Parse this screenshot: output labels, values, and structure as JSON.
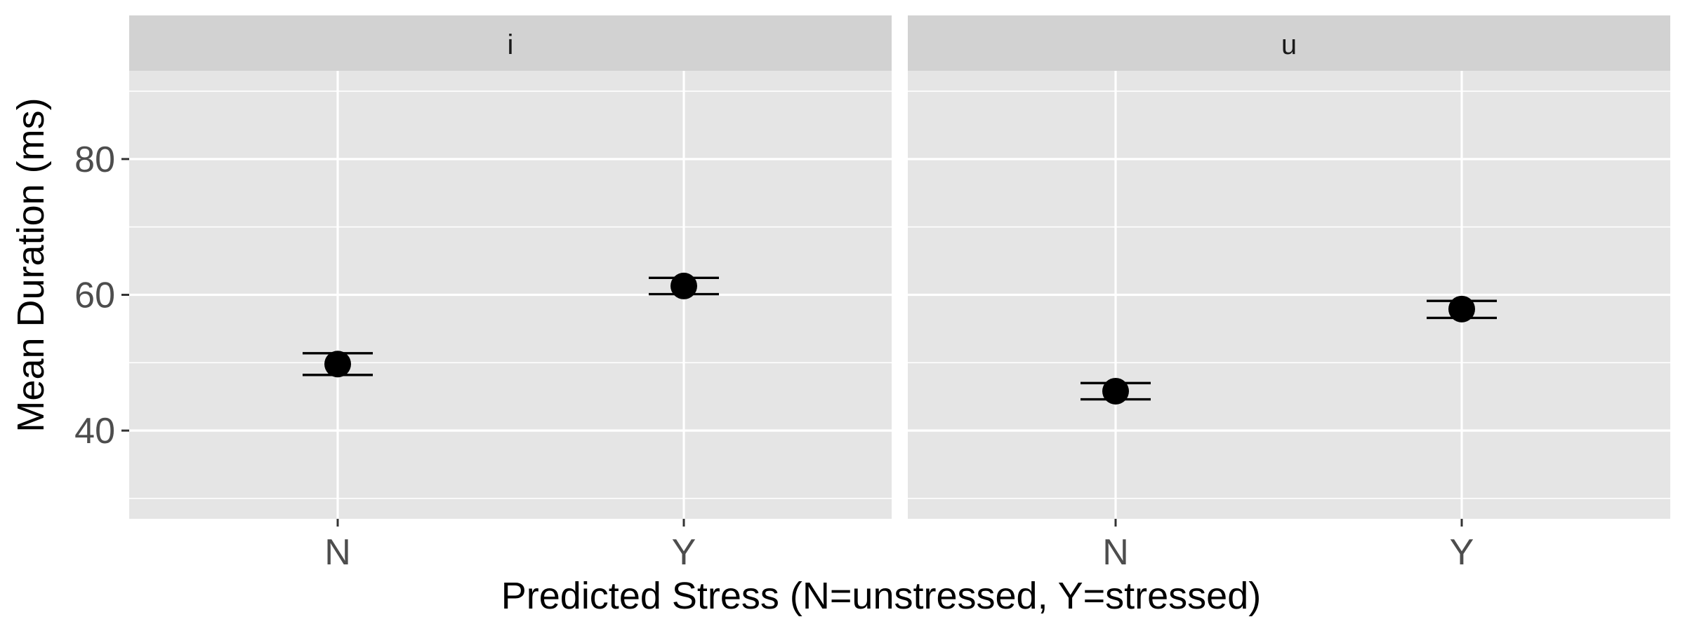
{
  "chart_data": {
    "type": "scatter",
    "facet_variable_values": [
      "i",
      "u"
    ],
    "categories": [
      "N",
      "Y"
    ],
    "xlabel": "Predicted Stress (N=unstressed, Y=stressed)",
    "ylabel": "Mean Duration (ms)",
    "ylim": [
      27,
      93
    ],
    "yticks": [
      40,
      60,
      80
    ],
    "y_tick_labels": [
      "40",
      "60",
      "80"
    ],
    "grid": true,
    "panels": [
      {
        "facet": "i",
        "points": [
          {
            "x": "N",
            "y": 49.8,
            "ymin": 48.2,
            "ymax": 51.4
          },
          {
            "x": "Y",
            "y": 61.3,
            "ymin": 60.1,
            "ymax": 62.5
          }
        ]
      },
      {
        "facet": "u",
        "points": [
          {
            "x": "N",
            "y": 45.8,
            "ymin": 44.6,
            "ymax": 47.0
          },
          {
            "x": "Y",
            "y": 57.9,
            "ymin": 56.6,
            "ymax": 59.1
          }
        ]
      }
    ],
    "colors": {
      "panel_background": "#e5e5e5",
      "strip_background": "#d2d2d2",
      "grid": "#ffffff",
      "point": "#000000"
    }
  }
}
